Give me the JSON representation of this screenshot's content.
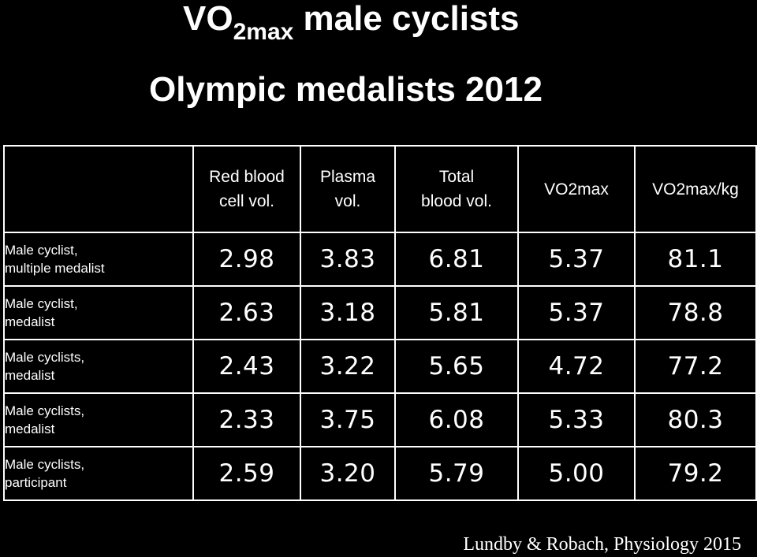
{
  "title": {
    "main_prefix": "VO",
    "main_subscript": "2max",
    "main_suffix": " male cyclists",
    "subtitle": "Olympic medalists 2012"
  },
  "table": {
    "columns": [
      {
        "line1": "Red blood",
        "line2": "cell vol."
      },
      {
        "line1": "Plasma",
        "line2": "vol."
      },
      {
        "line1": "Total",
        "line2": "blood vol."
      },
      {
        "line1": "VO2max",
        "line2": ""
      },
      {
        "line1": "VO2max/kg",
        "line2": ""
      }
    ],
    "rows": [
      {
        "label1": "Male cyclist,",
        "label2": "multiple medalist",
        "values": [
          "2.98",
          "3.83",
          "6.81",
          "5.37",
          "81.1"
        ]
      },
      {
        "label1": "Male cyclist,",
        "label2": "medalist",
        "values": [
          "2.63",
          "3.18",
          "5.81",
          "5.37",
          "78.8"
        ]
      },
      {
        "label1": "Male cyclists,",
        "label2": "medalist",
        "values": [
          "2.43",
          "3.22",
          "5.65",
          "4.72",
          "77.2"
        ]
      },
      {
        "label1": "Male cyclists,",
        "label2": "medalist",
        "values": [
          "2.33",
          "3.75",
          "6.08",
          "5.33",
          "80.3"
        ]
      },
      {
        "label1": "Male cyclists,",
        "label2": "participant",
        "values": [
          "2.59",
          "3.20",
          "5.79",
          "5.00",
          "79.2"
        ]
      }
    ]
  },
  "citation": "Lundby & Robach, Physiology 2015",
  "colors": {
    "background": "#000000",
    "text": "#ffffff",
    "border": "#ffffff"
  }
}
